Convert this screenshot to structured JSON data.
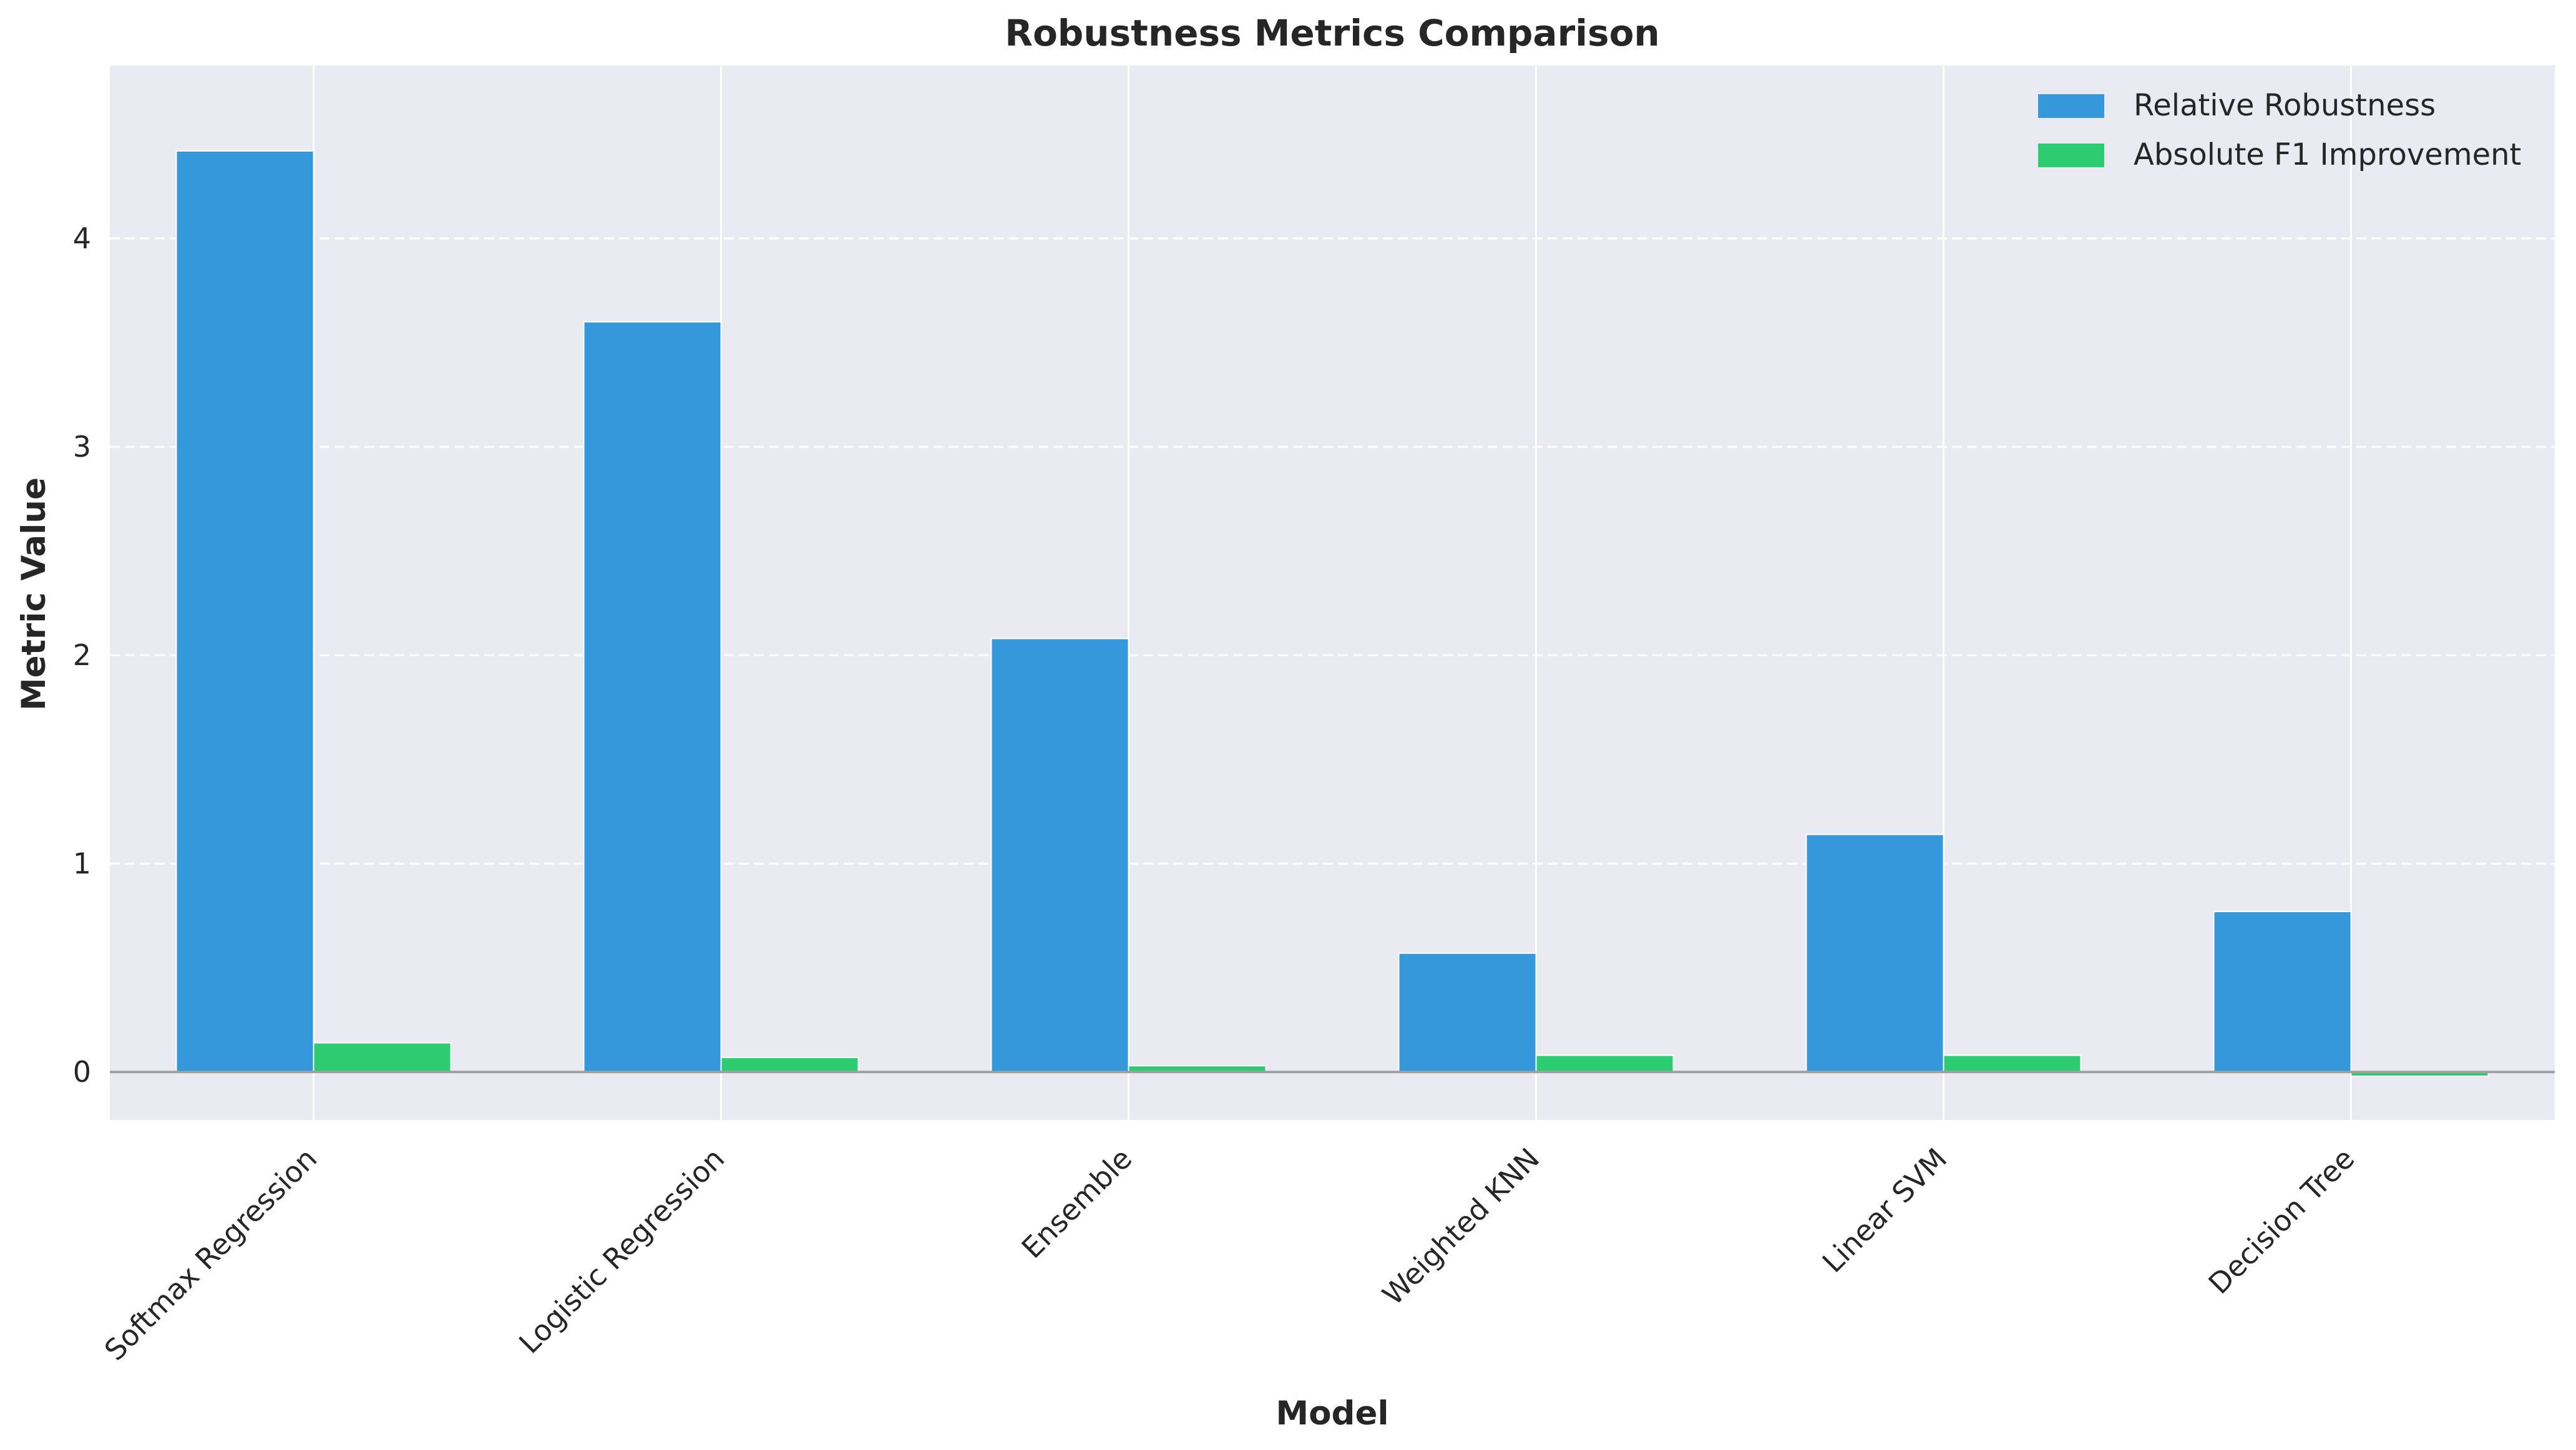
{
  "chart_data": {
    "type": "bar",
    "title": "Robustness Metrics Comparison",
    "xlabel": "Model",
    "ylabel": "Metric Value",
    "categories": [
      "Softmax Regression",
      "Logistic Regression",
      "Ensemble",
      "Weighted KNN",
      "Linear SVM",
      "Decision Tree"
    ],
    "series": [
      {
        "name": "Relative Robustness",
        "values": [
          4.42,
          3.6,
          2.08,
          0.57,
          1.14,
          0.77
        ],
        "color": "#3498db"
      },
      {
        "name": "Absolute F1 Improvement",
        "values": [
          0.14,
          0.07,
          0.03,
          0.08,
          0.08,
          -0.02
        ],
        "color": "#2ecc71"
      }
    ],
    "ylim": [
      -0.23,
      4.83
    ],
    "yticks": [
      "0",
      "1",
      "2",
      "3",
      "4"
    ],
    "grid": true,
    "legend_position": "top-right",
    "colors": {
      "plot_background": "#eaeaf2",
      "grid": "#ffffff",
      "zero_line": "#a0a0a0"
    }
  }
}
